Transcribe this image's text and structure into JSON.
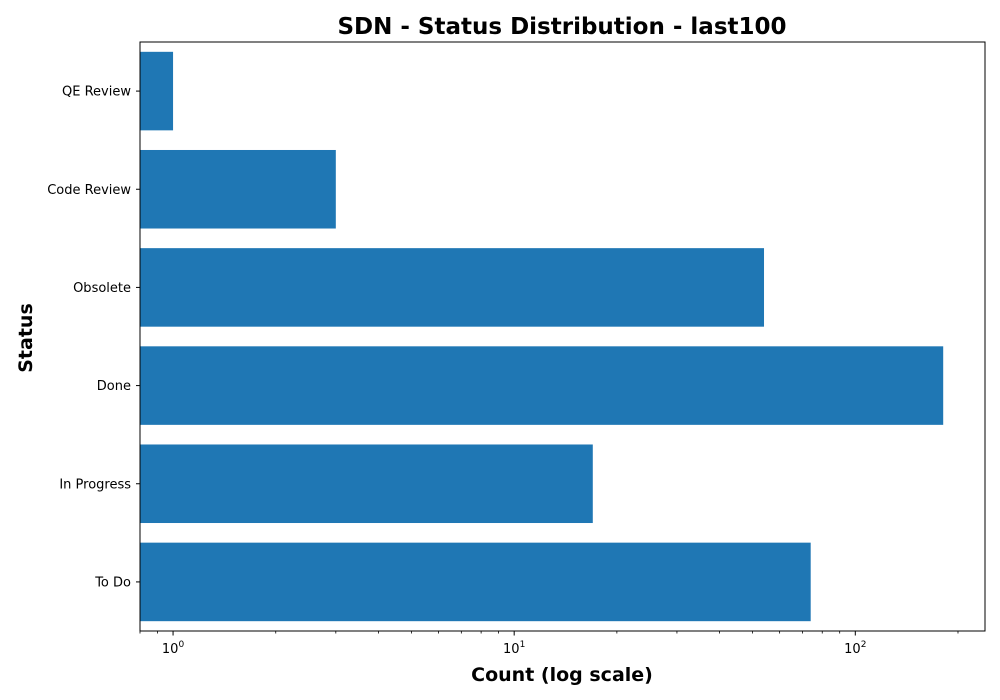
{
  "chart_data": {
    "type": "bar",
    "orientation": "horizontal",
    "title": "SDN - Status Distribution - last100",
    "xlabel": "Count (log scale)",
    "ylabel": "Status",
    "x_scale": "log",
    "xlim": [
      0.8,
      240
    ],
    "x_major_ticks": [
      {
        "base": "10",
        "exp": "0",
        "value": 1
      },
      {
        "base": "10",
        "exp": "1",
        "value": 10
      },
      {
        "base": "10",
        "exp": "2",
        "value": 100
      }
    ],
    "categories": [
      "To Do",
      "In Progress",
      "Done",
      "Obsolete",
      "Code Review",
      "QE Review"
    ],
    "values": [
      74,
      17,
      181,
      54,
      3,
      1
    ],
    "bar_color": "#1f77b4",
    "grid": false,
    "legend": "none"
  }
}
